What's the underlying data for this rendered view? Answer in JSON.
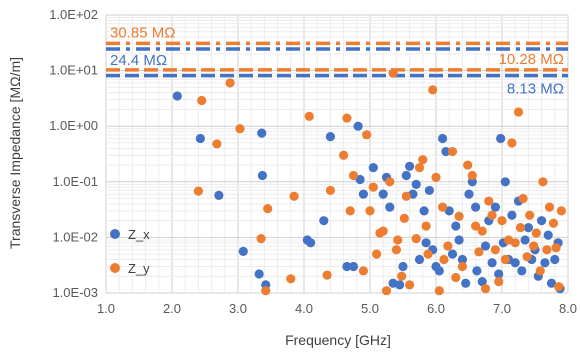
{
  "chart_data": {
    "type": "scatter",
    "xlabel": "Frequency [GHz]",
    "ylabel": "Transverse Impedance [MΩ/m]",
    "xlim": [
      1.0,
      8.0
    ],
    "ylim": [
      0.001,
      100
    ],
    "yscale": "log",
    "grid": true,
    "legend_position": "left",
    "x_ticks": [
      "1.0",
      "2.0",
      "3.0",
      "4.0",
      "5.0",
      "6.0",
      "7.0",
      "8.0"
    ],
    "y_ticks": [
      "1.0E-03",
      "1.0E-02",
      "1.0E-01",
      "1.0E+00",
      "1.0E+01",
      "1.0E+02"
    ],
    "reference_lines": [
      {
        "label": "30.85 MΩ",
        "value": 30.85,
        "color": "#ED7D31",
        "style": "dash-dot"
      },
      {
        "label": "24.4 MΩ",
        "value": 24.4,
        "color": "#4472C4",
        "style": "dash-dot"
      },
      {
        "label": "10.28 MΩ",
        "value": 10.28,
        "color": "#ED7D31",
        "style": "dashed"
      },
      {
        "label": "8.13 MΩ",
        "value": 8.13,
        "color": "#4472C4",
        "style": "dashed"
      }
    ],
    "series": [
      {
        "name": "Z_x",
        "color": "#4472C4",
        "points": [
          [
            2.08,
            3.5
          ],
          [
            2.43,
            0.6
          ],
          [
            2.71,
            0.057
          ],
          [
            3.08,
            0.0056
          ],
          [
            3.32,
            0.0022
          ],
          [
            3.36,
            0.75
          ],
          [
            3.37,
            0.13
          ],
          [
            3.42,
            0.0014
          ],
          [
            4.05,
            0.009
          ],
          [
            4.1,
            0.008
          ],
          [
            4.4,
            0.65
          ],
          [
            4.3,
            0.02
          ],
          [
            4.65,
            0.003
          ],
          [
            4.75,
            0.003
          ],
          [
            4.82,
            1.0
          ],
          [
            4.85,
            0.11
          ],
          [
            4.9,
            0.06
          ],
          [
            5.05,
            0.18
          ],
          [
            5.2,
            0.06
          ],
          [
            5.25,
            0.12
          ],
          [
            5.3,
            0.035
          ],
          [
            5.35,
            0.0015
          ],
          [
            5.45,
            0.0014
          ],
          [
            5.5,
            0.003
          ],
          [
            5.55,
            0.13
          ],
          [
            5.6,
            0.19
          ],
          [
            5.65,
            0.06
          ],
          [
            5.7,
            0.09
          ],
          [
            5.75,
            0.004
          ],
          [
            5.82,
            0.03
          ],
          [
            5.85,
            0.008
          ],
          [
            5.9,
            0.07
          ],
          [
            5.95,
            0.006
          ],
          [
            6.0,
            0.003
          ],
          [
            6.05,
            0.0025
          ],
          [
            6.1,
            0.6
          ],
          [
            6.15,
            0.35
          ],
          [
            6.2,
            0.03
          ],
          [
            6.25,
            0.005
          ],
          [
            6.3,
            0.016
          ],
          [
            6.35,
            0.009
          ],
          [
            6.4,
            0.004
          ],
          [
            6.45,
            0.0015
          ],
          [
            6.5,
            0.06
          ],
          [
            6.55,
            0.1
          ],
          [
            6.6,
            0.035
          ],
          [
            6.62,
            0.0025
          ],
          [
            6.7,
            0.0016
          ],
          [
            6.75,
            0.007
          ],
          [
            6.8,
            0.02
          ],
          [
            6.85,
            0.0035
          ],
          [
            6.9,
            0.035
          ],
          [
            6.95,
            0.0022
          ],
          [
            6.98,
            0.6
          ],
          [
            7.02,
            0.008
          ],
          [
            7.05,
            0.1
          ],
          [
            7.1,
            0.004
          ],
          [
            7.15,
            0.025
          ],
          [
            7.2,
            0.0035
          ],
          [
            7.25,
            0.045
          ],
          [
            7.3,
            0.0025
          ],
          [
            7.35,
            0.009
          ],
          [
            7.4,
            0.015
          ],
          [
            7.45,
            0.004
          ],
          [
            7.5,
            0.006
          ],
          [
            7.55,
            0.002
          ],
          [
            7.6,
            0.02
          ],
          [
            7.65,
            0.0035
          ],
          [
            7.7,
            0.011
          ],
          [
            7.75,
            0.0015
          ],
          [
            7.8,
            0.004
          ],
          [
            7.85,
            0.008
          ],
          [
            7.88,
            0.0012
          ]
        ]
      },
      {
        "name": "Z_y",
        "color": "#ED7D31",
        "points": [
          [
            2.4,
            0.068
          ],
          [
            2.45,
            2.9
          ],
          [
            2.68,
            0.48
          ],
          [
            2.88,
            6.0
          ],
          [
            3.03,
            0.9
          ],
          [
            3.35,
            0.0095
          ],
          [
            3.42,
            0.0011
          ],
          [
            3.45,
            0.033
          ],
          [
            3.8,
            0.0018
          ],
          [
            3.85,
            0.055
          ],
          [
            4.08,
            1.5
          ],
          [
            4.4,
            0.07
          ],
          [
            4.35,
            0.0021
          ],
          [
            4.6,
            0.3
          ],
          [
            4.65,
            1.4
          ],
          [
            4.7,
            0.03
          ],
          [
            4.75,
            0.13
          ],
          [
            4.9,
            0.0025
          ],
          [
            4.95,
            0.7
          ],
          [
            5.0,
            0.03
          ],
          [
            5.05,
            0.08
          ],
          [
            5.1,
            0.005
          ],
          [
            5.15,
            0.012
          ],
          [
            5.2,
            0.013
          ],
          [
            5.25,
            0.0011
          ],
          [
            5.3,
            0.1
          ],
          [
            5.35,
            9.0
          ],
          [
            5.4,
            0.006
          ],
          [
            5.42,
            0.009
          ],
          [
            5.48,
            0.002
          ],
          [
            5.52,
            0.022
          ],
          [
            5.55,
            0.055
          ],
          [
            5.6,
            0.0014
          ],
          [
            5.7,
            0.0095
          ],
          [
            5.75,
            0.18
          ],
          [
            5.8,
            0.25
          ],
          [
            5.85,
            0.016
          ],
          [
            5.88,
            0.005
          ],
          [
            5.95,
            4.5
          ],
          [
            6.0,
            0.12
          ],
          [
            6.05,
            0.0011
          ],
          [
            6.1,
            0.035
          ],
          [
            6.12,
            0.004
          ],
          [
            6.18,
            0.007
          ],
          [
            6.25,
            0.35
          ],
          [
            6.3,
            0.0019
          ],
          [
            6.35,
            0.024
          ],
          [
            6.4,
            0.003
          ],
          [
            6.48,
            0.2
          ],
          [
            6.55,
            0.13
          ],
          [
            6.6,
            0.016
          ],
          [
            6.65,
            0.0055
          ],
          [
            6.7,
            0.013
          ],
          [
            6.75,
            0.0012
          ],
          [
            6.8,
            0.045
          ],
          [
            6.85,
            0.025
          ],
          [
            6.9,
            0.006
          ],
          [
            6.95,
            0.0016
          ],
          [
            7.0,
            0.02
          ],
          [
            7.05,
            0.004
          ],
          [
            7.1,
            0.009
          ],
          [
            7.15,
            0.5
          ],
          [
            7.2,
            0.008
          ],
          [
            7.25,
            1.8
          ],
          [
            7.28,
            0.015
          ],
          [
            7.32,
            0.05
          ],
          [
            7.38,
            0.0045
          ],
          [
            7.42,
            0.025
          ],
          [
            7.48,
            0.007
          ],
          [
            7.52,
            0.012
          ],
          [
            7.58,
            0.0025
          ],
          [
            7.62,
            0.1
          ],
          [
            7.68,
            0.006
          ],
          [
            7.72,
            0.035
          ],
          [
            7.78,
            0.018
          ],
          [
            7.82,
            0.0065
          ],
          [
            7.86,
            0.0013
          ],
          [
            7.9,
            0.03
          ]
        ]
      }
    ]
  }
}
